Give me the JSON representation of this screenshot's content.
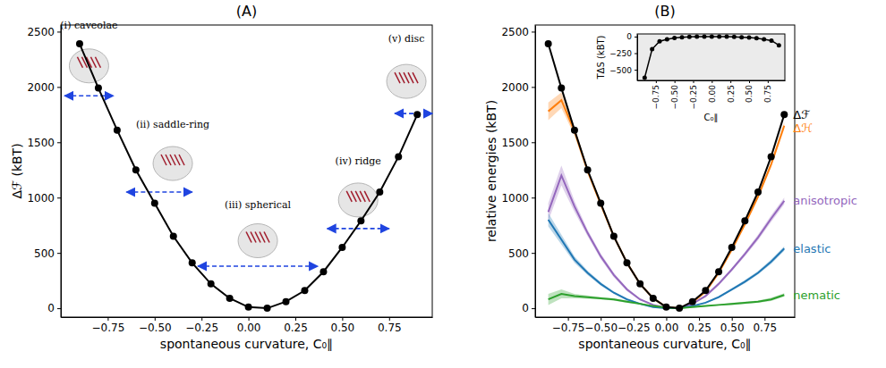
{
  "chart_data": [
    {
      "type": "line",
      "title": "(A)",
      "x_label": "spontaneous curvature, C₀∥",
      "y_label": "Δℱ (kBT)",
      "x": [
        -0.9,
        -0.8,
        -0.7,
        -0.6,
        -0.5,
        -0.4,
        -0.3,
        -0.2,
        -0.1,
        0,
        0.1,
        0.2,
        0.3,
        0.4,
        0.5,
        0.6,
        0.7,
        0.8,
        0.9
      ],
      "series": [
        {
          "color": "#000000",
          "marker": "circle",
          "values": [
            2390,
            1990,
            1610,
            1250,
            950,
            650,
            410,
            220,
            90,
            10,
            0,
            60,
            160,
            330,
            550,
            790,
            1050,
            1370,
            1750
          ]
        }
      ],
      "xlim": [
        -1.0,
        0.98
      ],
      "ylim": [
        -80,
        2560
      ],
      "xticks": [
        {
          "value": -0.75,
          "label": "−0.75"
        },
        {
          "value": -0.5,
          "label": "−0.50"
        },
        {
          "value": -0.25,
          "label": "−0.25"
        },
        {
          "value": 0,
          "label": "0.00"
        },
        {
          "value": 0.25,
          "label": "0.25"
        },
        {
          "value": 0.5,
          "label": "0.50"
        },
        {
          "value": 0.75,
          "label": "0.75"
        }
      ],
      "yticks": [
        0,
        500,
        1000,
        1500,
        2000,
        2500
      ],
      "annotations": [
        {
          "text": "(i) caveolae",
          "x_range": [
            -0.98,
            -0.72
          ],
          "y": 1920
        },
        {
          "text": "(ii) saddle-ring",
          "x_range": [
            -0.65,
            -0.3
          ],
          "y": 1050
        },
        {
          "text": "(iii) spherical",
          "x_range": [
            -0.27,
            0.37
          ],
          "y": 380
        },
        {
          "text": "(iv) ridge",
          "x_range": [
            0.42,
            0.75
          ],
          "y": 720
        },
        {
          "text": "(v) disc",
          "x_range": [
            0.78,
            0.98
          ],
          "y": 1760
        }
      ]
    },
    {
      "type": "line",
      "title": "(B)",
      "x_label": "spontaneous curvature, C₀∥",
      "y_label": "relative energies (kBT)",
      "x": [
        -0.9,
        -0.8,
        -0.7,
        -0.6,
        -0.5,
        -0.4,
        -0.3,
        -0.2,
        -0.1,
        0,
        0.1,
        0.2,
        0.3,
        0.4,
        0.5,
        0.6,
        0.7,
        0.8,
        0.9
      ],
      "series": [
        {
          "name": "Δℋ",
          "color": "#ff7f0e",
          "values": [
            1780,
            1880,
            1600,
            1240,
            940,
            650,
            410,
            220,
            90,
            10,
            0,
            55,
            150,
            320,
            530,
            760,
            1010,
            1300,
            1650
          ],
          "errors": [
            80,
            70,
            40,
            25,
            20,
            15,
            10,
            10,
            5,
            5,
            5,
            5,
            10,
            10,
            15,
            20,
            20,
            25,
            30
          ]
        },
        {
          "name": "anisotropic",
          "color": "#9467bd",
          "values": [
            870,
            1200,
            920,
            680,
            470,
            300,
            170,
            80,
            30,
            5,
            0,
            40,
            110,
            220,
            350,
            490,
            640,
            810,
            970
          ],
          "errors": [
            80,
            90,
            50,
            30,
            25,
            20,
            15,
            10,
            5,
            5,
            5,
            5,
            10,
            15,
            15,
            20,
            25,
            30,
            30
          ]
        },
        {
          "name": "elastic",
          "color": "#1f77b4",
          "values": [
            800,
            620,
            440,
            320,
            220,
            140,
            80,
            40,
            10,
            0,
            0,
            20,
            50,
            100,
            170,
            240,
            320,
            420,
            540
          ],
          "errors": [
            60,
            45,
            30,
            20,
            15,
            10,
            10,
            5,
            5,
            5,
            5,
            5,
            5,
            10,
            10,
            15,
            15,
            20,
            20
          ]
        },
        {
          "name": "nematic",
          "color": "#2ca02c",
          "values": [
            80,
            130,
            110,
            100,
            90,
            80,
            60,
            40,
            20,
            5,
            0,
            10,
            20,
            30,
            40,
            50,
            60,
            80,
            120
          ],
          "errors": [
            50,
            40,
            20,
            15,
            10,
            10,
            10,
            5,
            5,
            5,
            5,
            5,
            5,
            5,
            10,
            10,
            10,
            15,
            15
          ]
        },
        {
          "name": "Δℱ",
          "color": "#000000",
          "marker": "circle",
          "values": [
            2390,
            1990,
            1610,
            1250,
            950,
            650,
            410,
            220,
            90,
            10,
            0,
            60,
            160,
            330,
            550,
            790,
            1050,
            1370,
            1750
          ]
        }
      ],
      "xlim": [
        -1.0,
        0.98
      ],
      "ylim": [
        -80,
        2560
      ],
      "xticks": [
        {
          "value": -0.75,
          "label": "−0.75"
        },
        {
          "value": -0.5,
          "label": "−0.50"
        },
        {
          "value": -0.25,
          "label": "−0.25"
        },
        {
          "value": 0,
          "label": "0.00"
        },
        {
          "value": 0.25,
          "label": "0.25"
        },
        {
          "value": 0.5,
          "label": "0.50"
        },
        {
          "value": 0.75,
          "label": "0.75"
        }
      ],
      "yticks": [
        0,
        500,
        1000,
        1500,
        2000,
        2500
      ],
      "inset": {
        "type": "line",
        "x_label": "C₀∥",
        "y_label": "TΔS (kBT)",
        "x": [
          -0.9,
          -0.8,
          -0.7,
          -0.6,
          -0.5,
          -0.4,
          -0.3,
          -0.2,
          -0.1,
          0,
          0.1,
          0.2,
          0.3,
          0.4,
          0.5,
          0.6,
          0.7,
          0.8,
          0.9
        ],
        "series": [
          {
            "color": "#000000",
            "marker": "circle",
            "values": [
              -620,
              -190,
              -70,
              -40,
              -20,
              -10,
              -5,
              0,
              0,
              0,
              0,
              0,
              -5,
              -10,
              -15,
              -25,
              -40,
              -60,
              -130
            ]
          }
        ],
        "xlim": [
          -1.0,
          0.98
        ],
        "ylim": [
          -660,
          40
        ],
        "xticks": [
          {
            "value": -0.75,
            "label": "−0.75"
          },
          {
            "value": -0.5,
            "label": "−0.50"
          },
          {
            "value": -0.25,
            "label": "−0.25"
          },
          {
            "value": 0,
            "label": "0.00"
          },
          {
            "value": 0.25,
            "label": "0.25"
          },
          {
            "value": 0.5,
            "label": "0.50"
          },
          {
            "value": 0.75,
            "label": "0.75"
          }
        ],
        "yticks": [
          {
            "value": -500,
            "label": "−500"
          },
          {
            "value": -250,
            "label": "−250"
          },
          0
        ]
      }
    }
  ]
}
